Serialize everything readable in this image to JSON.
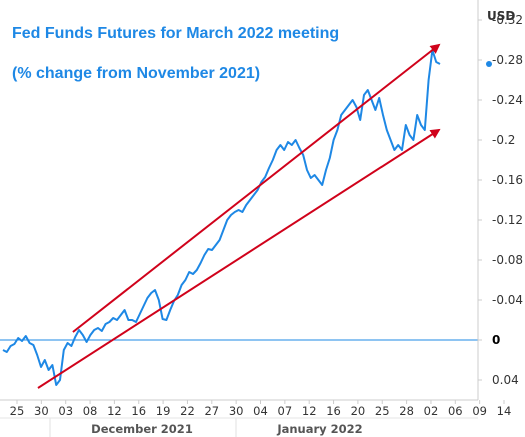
{
  "chart_data": {
    "type": "line",
    "title": "Fed Funds Futures for March 2022 meeting",
    "subtitle": "(% change from November 2021)",
    "y_unit_label": "USD",
    "y_axis_position": "right",
    "y_axis_inverted": true,
    "ylim": [
      -0.34,
      0.06
    ],
    "y_ticks": [
      -0.32,
      -0.28,
      -0.24,
      -0.2,
      -0.16,
      -0.12,
      -0.08,
      -0.04,
      0,
      0.04
    ],
    "y_tick_labels": [
      "-0.32",
      "-0.28",
      "-0.24",
      "-0.2",
      "-0.16",
      "-0.12",
      "-0.08",
      "-0.04",
      "0",
      "0.04"
    ],
    "x_tick_labels": [
      "25",
      "30",
      "03",
      "08",
      "12",
      "16",
      "19",
      "22",
      "27",
      "30",
      "04",
      "07",
      "12",
      "16",
      "20",
      "25",
      "28",
      "02",
      "06",
      "09",
      "14"
    ],
    "x_month_labels": [
      "December 2021",
      "January 2022"
    ],
    "zero_line": 0,
    "last_value_marker": -0.276,
    "grid": false,
    "colors": {
      "series": "#1e88e5",
      "trend": "#d0021b",
      "title": "#1e88e5",
      "zero_line": "#1e88e5"
    },
    "series": [
      {
        "values": [
          0.01,
          0.012,
          0.006,
          0.004,
          -0.002,
          0.001,
          -0.004,
          0.003,
          0.005,
          0.015,
          0.027,
          0.02,
          0.03,
          0.025,
          0.045,
          0.04,
          0.01,
          0.003,
          0.006,
          -0.003,
          -0.01,
          -0.005,
          0.002,
          -0.005,
          -0.01,
          -0.012,
          -0.009,
          -0.016,
          -0.018,
          -0.022,
          -0.02,
          -0.025,
          -0.03,
          -0.02,
          -0.02,
          -0.018,
          -0.026,
          -0.034,
          -0.042,
          -0.047,
          -0.05,
          -0.04,
          -0.021,
          -0.02,
          -0.03,
          -0.039,
          -0.045,
          -0.055,
          -0.06,
          -0.068,
          -0.066,
          -0.07,
          -0.077,
          -0.085,
          -0.091,
          -0.09,
          -0.095,
          -0.1,
          -0.11,
          -0.12,
          -0.125,
          -0.128,
          -0.13,
          -0.128,
          -0.135,
          -0.14,
          -0.145,
          -0.15,
          -0.158,
          -0.163,
          -0.172,
          -0.18,
          -0.19,
          -0.195,
          -0.19,
          -0.198,
          -0.195,
          -0.2,
          -0.192,
          -0.185,
          -0.17,
          -0.162,
          -0.165,
          -0.16,
          -0.155,
          -0.17,
          -0.182,
          -0.2,
          -0.21,
          -0.225,
          -0.23,
          -0.235,
          -0.24,
          -0.233,
          -0.22,
          -0.245,
          -0.25,
          -0.24,
          -0.23,
          -0.242,
          -0.225,
          -0.21,
          -0.2,
          -0.19,
          -0.195,
          -0.19,
          -0.215,
          -0.205,
          -0.2,
          -0.225,
          -0.215,
          -0.21,
          -0.26,
          -0.29,
          -0.278,
          -0.276
        ]
      }
    ],
    "trend_lines": [
      {
        "label": "upper",
        "from": [
          0.16,
          -0.008
        ],
        "to": [
          0.97,
          -0.295
        ]
      },
      {
        "label": "lower",
        "from": [
          0.08,
          0.048
        ],
        "to": [
          0.97,
          -0.21
        ]
      }
    ]
  }
}
